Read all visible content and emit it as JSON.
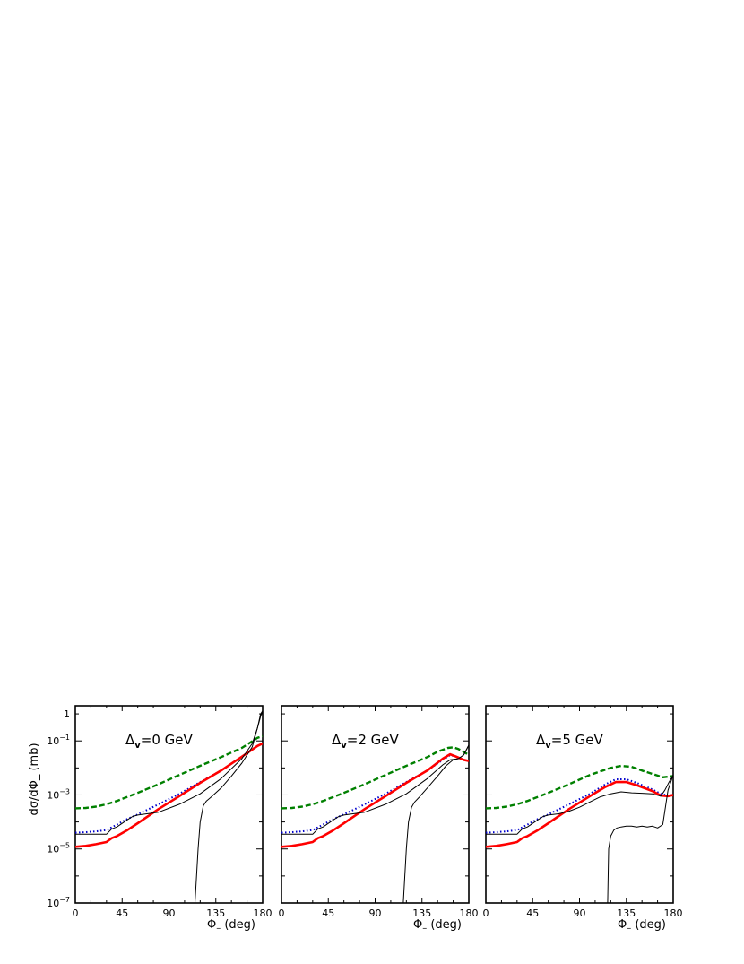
{
  "chart_data": [
    {
      "type": "line",
      "panel_label": {
        "prefix": "Δ",
        "sub": "v",
        "text": "=0 GeV"
      },
      "xlabel": {
        "main": "Φ",
        "sub": "–",
        "rest": " (deg)"
      },
      "ylabel": "dσ/dΦ_ (mb)",
      "xlim": [
        0,
        180
      ],
      "ylim": [
        1e-07,
        2
      ],
      "yscale": "log",
      "xticks": [
        "0",
        "45",
        "90",
        "135",
        "180"
      ],
      "yticks": [
        {
          "base": "1",
          "exp": ""
        },
        {
          "base": "10",
          "exp": "−1"
        },
        {
          "base": "10",
          "exp": "−3"
        },
        {
          "base": "10",
          "exp": "−5"
        },
        {
          "base": "10",
          "exp": "−7"
        }
      ],
      "series": [
        {
          "color": "#008000",
          "style": "dashed",
          "x": [
            0,
            10,
            20,
            30,
            40,
            60,
            80,
            100,
            120,
            140,
            160,
            175,
            180
          ],
          "y": [
            0.00032,
            0.00033,
            0.00037,
            0.00045,
            0.0006,
            0.0012,
            0.0025,
            0.0055,
            0.012,
            0.025,
            0.055,
            0.13,
            0.15
          ]
        },
        {
          "color": "#0000cc",
          "style": "dotted",
          "x": [
            0,
            10,
            20,
            30,
            40,
            50,
            60,
            80,
            100,
            120,
            140,
            160,
            175,
            180
          ],
          "y": [
            4e-05,
            4.2e-05,
            4.5e-05,
            5e-05,
            8e-05,
            0.00013,
            0.00019,
            0.00045,
            0.0011,
            0.003,
            0.008,
            0.026,
            0.065,
            0.08
          ]
        },
        {
          "color": "#ff0000",
          "style": "thick",
          "x": [
            0,
            10,
            20,
            30,
            35,
            40,
            50,
            60,
            80,
            100,
            120,
            140,
            160,
            175,
            180
          ],
          "y": [
            1.2e-05,
            1.3e-05,
            1.5e-05,
            1.8e-05,
            2.5e-05,
            3e-05,
            5e-05,
            9e-05,
            0.0003,
            0.0009,
            0.0028,
            0.008,
            0.026,
            0.065,
            0.08
          ]
        },
        {
          "color": "#000000",
          "style": "thin",
          "x": [
            0,
            30,
            35,
            40,
            50,
            55,
            60,
            80,
            100,
            120,
            140,
            160,
            170,
            175,
            178,
            180
          ],
          "y": [
            3.5e-05,
            3.5e-05,
            5.5e-05,
            6.5e-05,
            0.00012,
            0.00016,
            0.00018,
            0.00023,
            0.00045,
            0.0011,
            0.004,
            0.022,
            0.08,
            0.3,
            1.0,
            1.3
          ]
        },
        {
          "color": "#000000",
          "style": "thin",
          "x": [
            115,
            118,
            120,
            123,
            126,
            130,
            140,
            150,
            160,
            170,
            175,
            178,
            180
          ],
          "y": [
            1e-07,
            1e-05,
            0.0001,
            0.0004,
            0.0006,
            0.0008,
            0.0018,
            0.005,
            0.015,
            0.06,
            0.3,
            0.8,
            1.3
          ]
        }
      ]
    },
    {
      "type": "line",
      "panel_label": {
        "prefix": "Δ",
        "sub": "v",
        "text": "=2 GeV"
      },
      "xlabel": {
        "main": "Φ",
        "sub": "–",
        "rest": " (deg)"
      },
      "xlim": [
        0,
        180
      ],
      "ylim": [
        1e-07,
        2
      ],
      "yscale": "log",
      "xticks": [
        "0",
        "45",
        "90",
        "135",
        "180"
      ],
      "series": [
        {
          "color": "#008000",
          "style": "dashed",
          "x": [
            0,
            10,
            20,
            30,
            40,
            60,
            80,
            100,
            120,
            140,
            150,
            160,
            165,
            170,
            175,
            180
          ],
          "y": [
            0.00032,
            0.00033,
            0.00037,
            0.00045,
            0.0006,
            0.0012,
            0.0025,
            0.0055,
            0.012,
            0.025,
            0.04,
            0.055,
            0.058,
            0.05,
            0.04,
            0.03
          ]
        },
        {
          "color": "#0000cc",
          "style": "dotted",
          "x": [
            0,
            10,
            20,
            30,
            40,
            50,
            60,
            80,
            100,
            120,
            140,
            155,
            162,
            168,
            175,
            180
          ],
          "y": [
            4e-05,
            4.2e-05,
            4.5e-05,
            5e-05,
            8e-05,
            0.00013,
            0.00019,
            0.00045,
            0.0011,
            0.003,
            0.008,
            0.02,
            0.03,
            0.026,
            0.02,
            0.018
          ]
        },
        {
          "color": "#ff0000",
          "style": "thick",
          "x": [
            0,
            10,
            20,
            30,
            35,
            40,
            50,
            60,
            80,
            100,
            120,
            140,
            155,
            162,
            168,
            175,
            180
          ],
          "y": [
            1.2e-05,
            1.3e-05,
            1.5e-05,
            1.8e-05,
            2.5e-05,
            3e-05,
            5e-05,
            9e-05,
            0.0003,
            0.0009,
            0.0028,
            0.008,
            0.022,
            0.032,
            0.026,
            0.02,
            0.018
          ]
        },
        {
          "color": "#000000",
          "style": "thin",
          "x": [
            0,
            30,
            35,
            40,
            50,
            55,
            60,
            80,
            100,
            120,
            140,
            155,
            162,
            170,
            175,
            180
          ],
          "y": [
            3.5e-05,
            3.5e-05,
            5.5e-05,
            6.5e-05,
            0.00012,
            0.00016,
            0.00018,
            0.00023,
            0.00045,
            0.0011,
            0.004,
            0.013,
            0.02,
            0.022,
            0.03,
            0.07
          ]
        },
        {
          "color": "#000000",
          "style": "thin",
          "x": [
            117,
            120,
            122,
            125,
            128,
            132,
            140,
            150,
            158,
            165,
            170,
            175,
            180
          ],
          "y": [
            1e-07,
            1e-05,
            0.0001,
            0.00035,
            0.00055,
            0.0008,
            0.0018,
            0.005,
            0.012,
            0.02,
            0.022,
            0.03,
            0.07
          ]
        }
      ]
    },
    {
      "type": "line",
      "panel_label": {
        "prefix": "Δ",
        "sub": "v",
        "text": "=5 GeV"
      },
      "xlabel": {
        "main": "Φ",
        "sub": "–",
        "rest": " (deg)"
      },
      "xlim": [
        0,
        180
      ],
      "ylim": [
        1e-07,
        2
      ],
      "yscale": "log",
      "xticks": [
        "0",
        "45",
        "90",
        "135",
        "180"
      ],
      "series": [
        {
          "color": "#008000",
          "style": "dashed",
          "x": [
            0,
            10,
            20,
            30,
            40,
            60,
            80,
            100,
            120,
            130,
            140,
            150,
            160,
            170,
            180
          ],
          "y": [
            0.00032,
            0.00033,
            0.00037,
            0.00045,
            0.0006,
            0.0012,
            0.0025,
            0.0055,
            0.01,
            0.012,
            0.011,
            0.008,
            0.006,
            0.0045,
            0.005
          ]
        },
        {
          "color": "#0000cc",
          "style": "dotted",
          "x": [
            0,
            10,
            20,
            30,
            40,
            50,
            60,
            80,
            100,
            115,
            125,
            135,
            145,
            160,
            168,
            175,
            180
          ],
          "y": [
            4e-05,
            4.2e-05,
            4.5e-05,
            5e-05,
            8e-05,
            0.00013,
            0.00019,
            0.00045,
            0.0011,
            0.0025,
            0.0038,
            0.0038,
            0.0028,
            0.0016,
            0.0011,
            0.00095,
            0.001
          ]
        },
        {
          "color": "#ff0000",
          "style": "thick",
          "x": [
            0,
            10,
            20,
            30,
            35,
            40,
            50,
            60,
            80,
            100,
            115,
            125,
            135,
            145,
            160,
            168,
            175,
            180
          ],
          "y": [
            1.2e-05,
            1.3e-05,
            1.5e-05,
            1.8e-05,
            2.5e-05,
            3e-05,
            5e-05,
            9e-05,
            0.0003,
            0.0009,
            0.002,
            0.003,
            0.003,
            0.0023,
            0.0014,
            0.00095,
            0.0009,
            0.001
          ]
        },
        {
          "color": "#000000",
          "style": "thin",
          "x": [
            0,
            30,
            35,
            40,
            50,
            55,
            60,
            70,
            80,
            90,
            100,
            110,
            120,
            130,
            140,
            150,
            160,
            168,
            172,
            176,
            180
          ],
          "y": [
            3.5e-05,
            3.5e-05,
            5.5e-05,
            6.5e-05,
            0.00012,
            0.00016,
            0.00018,
            0.0002,
            0.00025,
            0.00035,
            0.00055,
            0.00085,
            0.0011,
            0.0013,
            0.0012,
            0.00115,
            0.0011,
            0.0009,
            0.0015,
            0.003,
            0.0055
          ]
        },
        {
          "color": "#000000",
          "style": "thin",
          "x": [
            117,
            118,
            120,
            123,
            126,
            130,
            135,
            140,
            145,
            150,
            155,
            160,
            165,
            170,
            175,
            180
          ],
          "y": [
            1e-07,
            1e-05,
            3e-05,
            5e-05,
            6e-05,
            6.5e-05,
            7e-05,
            7e-05,
            6.5e-05,
            7e-05,
            6.5e-05,
            7e-05,
            6e-05,
            8e-05,
            0.0015,
            0.0055
          ]
        }
      ]
    }
  ]
}
